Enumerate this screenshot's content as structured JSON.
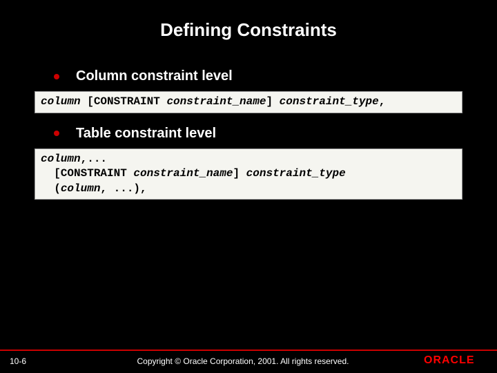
{
  "title": "Defining Constraints",
  "bullets": [
    {
      "text": "Column constraint level"
    },
    {
      "text": "Table constraint level"
    }
  ],
  "code1": {
    "seg1": "column",
    "seg2": " [CONSTRAINT ",
    "seg3": "constraint_name",
    "seg4": "] ",
    "seg5": "constraint_type",
    "seg6": ","
  },
  "code2": {
    "line1_seg1": "column",
    "line1_seg2": ",...",
    "line2_seg1": "  [CONSTRAINT ",
    "line2_seg2": "constraint_name",
    "line2_seg3": "] ",
    "line2_seg4": "constraint_type",
    "line3_seg1": "  (",
    "line3_seg2": "column",
    "line3_seg3": ", ...),"
  },
  "footer": {
    "slide_number": "10-6",
    "copyright": "Copyright © Oracle Corporation, 2001. All rights reserved.",
    "logo_text": "ORACLE",
    "logo_color": "#ff0000"
  },
  "colors": {
    "background": "#000000",
    "text": "#ffffff",
    "bullet": "#cc0000",
    "code_bg": "#f5f5f0",
    "footer_line": "#cc0000"
  }
}
